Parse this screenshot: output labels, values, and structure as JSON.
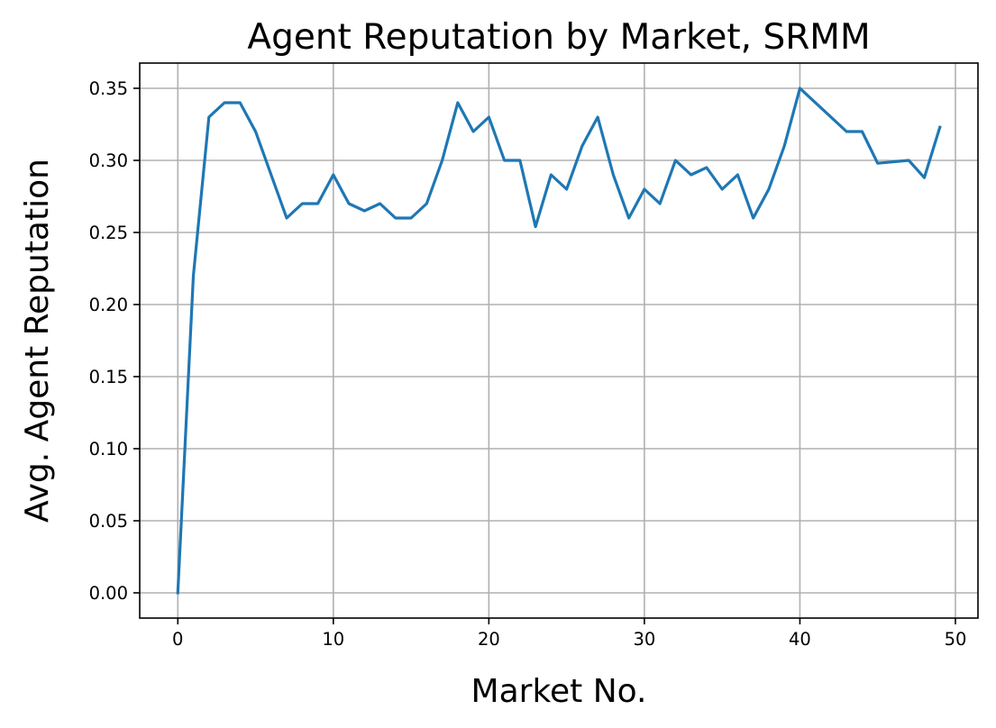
{
  "chart_data": {
    "type": "line",
    "title": "Agent Reputation by Market, SRMM",
    "xlabel": "Market No.",
    "ylabel": "Avg. Agent Reputation",
    "xlim": [
      -2.45,
      51.45
    ],
    "ylim": [
      -0.0175,
      0.3675
    ],
    "xticks": [
      0,
      10,
      20,
      30,
      40,
      50
    ],
    "yticks": [
      0.0,
      0.05,
      0.1,
      0.15,
      0.2,
      0.25,
      0.3,
      0.35
    ],
    "xtick_labels": [
      "0",
      "10",
      "20",
      "30",
      "40",
      "50"
    ],
    "ytick_labels": [
      "0.00",
      "0.05",
      "0.10",
      "0.15",
      "0.20",
      "0.25",
      "0.30",
      "0.35"
    ],
    "grid": true,
    "legend": "none",
    "series": [
      {
        "color": "#1f77b4",
        "x": [
          0,
          1,
          2,
          3,
          4,
          5,
          6,
          7,
          8,
          9,
          10,
          11,
          12,
          13,
          14,
          15,
          16,
          17,
          18,
          19,
          20,
          21,
          22,
          23,
          24,
          25,
          26,
          27,
          28,
          29,
          30,
          31,
          32,
          33,
          34,
          35,
          36,
          37,
          38,
          39,
          40,
          43,
          44,
          45,
          47,
          48,
          49
        ],
        "y": [
          0.0,
          0.22,
          0.33,
          0.34,
          0.34,
          0.32,
          0.29,
          0.26,
          0.27,
          0.27,
          0.29,
          0.27,
          0.265,
          0.27,
          0.26,
          0.26,
          0.27,
          0.3,
          0.34,
          0.32,
          0.33,
          0.3,
          0.3,
          0.254,
          0.29,
          0.28,
          0.31,
          0.33,
          0.29,
          0.26,
          0.28,
          0.27,
          0.3,
          0.29,
          0.295,
          0.28,
          0.29,
          0.26,
          0.28,
          0.31,
          0.35,
          0.32,
          0.32,
          0.298,
          0.3,
          0.288,
          0.323
        ]
      }
    ]
  }
}
